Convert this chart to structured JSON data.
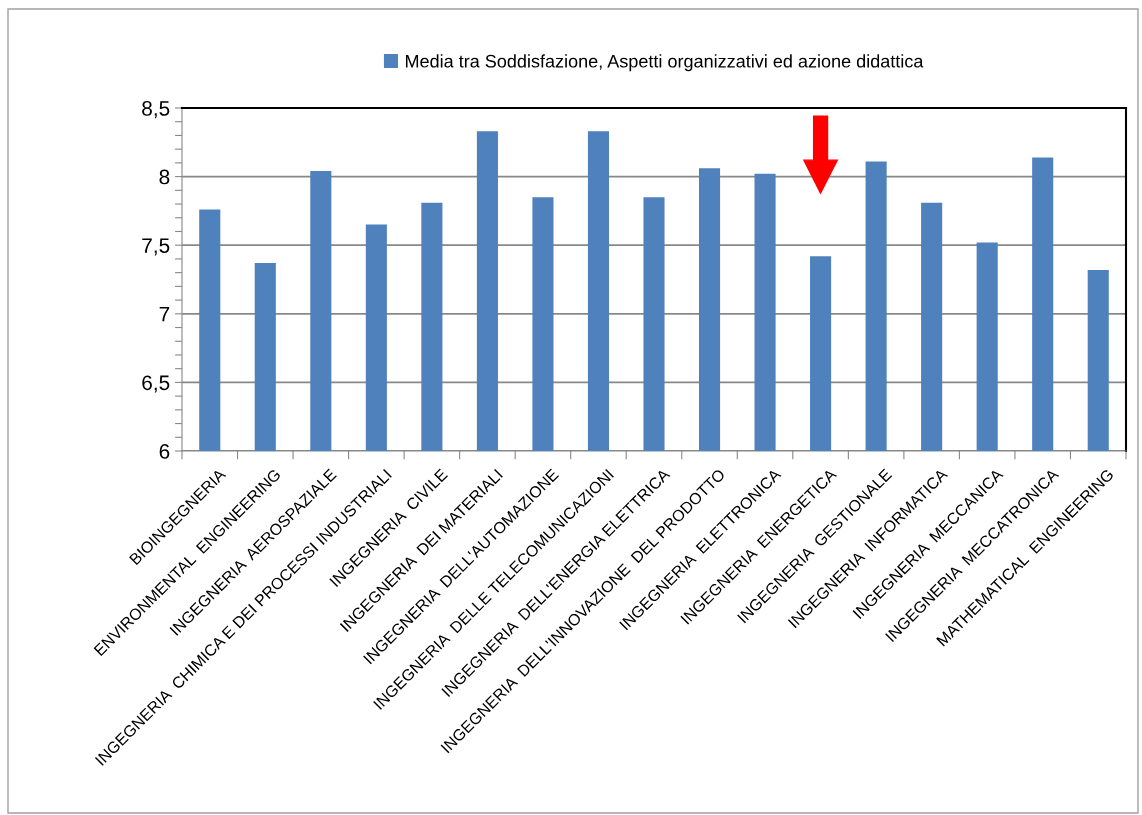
{
  "chart_data": {
    "type": "bar",
    "categories": [
      "BIOINGEGNERIA",
      "ENVIRONMENTAL  ENGINEERING",
      "INGEGNERIA  AEROSPAZIALE",
      "INGEGNERIA  CHIMICA E DEI PROCESSI INDUSTRIALI",
      "INGEGNERIA  CIVILE",
      "INGEGNERIA  DEI MATERIALI",
      "INGEGNERIA  DELL'AUTOMAZIONE",
      "INGEGNERIA  DELLE TELECOMUNICAZIONI",
      "INGEGNERIA  DELL'ENERGIA ELETTRICA",
      "INGEGNERIA  DELL'INNOVAZIONE  DEL PRODOTTO",
      "INGEGNERIA  ELETTRONICA",
      "INGEGNERIA  ENERGETICA",
      "INGEGNERIA  GESTIONALE",
      "INGEGNERIA  INFORMATICA",
      "INGEGNERIA  MECCANICA",
      "INGEGNERIA  MECCATRONICA",
      "MATHEMATICAL  ENGINEERING"
    ],
    "series": [
      {
        "name": "Media tra Soddisfazione, Aspetti organizzativi ed azione didattica",
        "color": "#4f81bd",
        "values": [
          7.76,
          7.37,
          8.04,
          7.65,
          7.81,
          8.33,
          7.85,
          8.33,
          7.85,
          8.06,
          8.02,
          7.42,
          8.11,
          7.81,
          7.52,
          8.14,
          7.32
        ]
      }
    ],
    "ylim": [
      6,
      8.5
    ],
    "yticks": [
      6,
      {
        "value": 6.1,
        "label": null
      },
      {
        "value": 6.2,
        "label": null
      },
      {
        "value": 6.3,
        "label": null
      },
      {
        "value": 6.4,
        "label": null
      },
      {
        "value": 6.5,
        "label": "6,5"
      },
      {
        "value": 6.6,
        "label": null
      },
      {
        "value": 6.7,
        "label": null
      },
      {
        "value": 6.8,
        "label": null
      },
      {
        "value": 6.9,
        "label": null
      },
      7,
      {
        "value": 7.1,
        "label": null
      },
      {
        "value": 7.2,
        "label": null
      },
      {
        "value": 7.3,
        "label": null
      },
      {
        "value": 7.4,
        "label": null
      },
      {
        "value": 7.5,
        "label": "7,5"
      },
      {
        "value": 7.6,
        "label": null
      },
      {
        "value": 7.7,
        "label": null
      },
      {
        "value": 7.8,
        "label": null
      },
      {
        "value": 7.9,
        "label": null
      },
      8,
      {
        "value": 8.1,
        "label": null
      },
      {
        "value": 8.2,
        "label": null
      },
      {
        "value": 8.3,
        "label": null
      },
      {
        "value": 8.4,
        "label": null
      },
      {
        "value": 8.5,
        "label": "8,5"
      }
    ],
    "grid": "y",
    "legend": "top"
  }
}
